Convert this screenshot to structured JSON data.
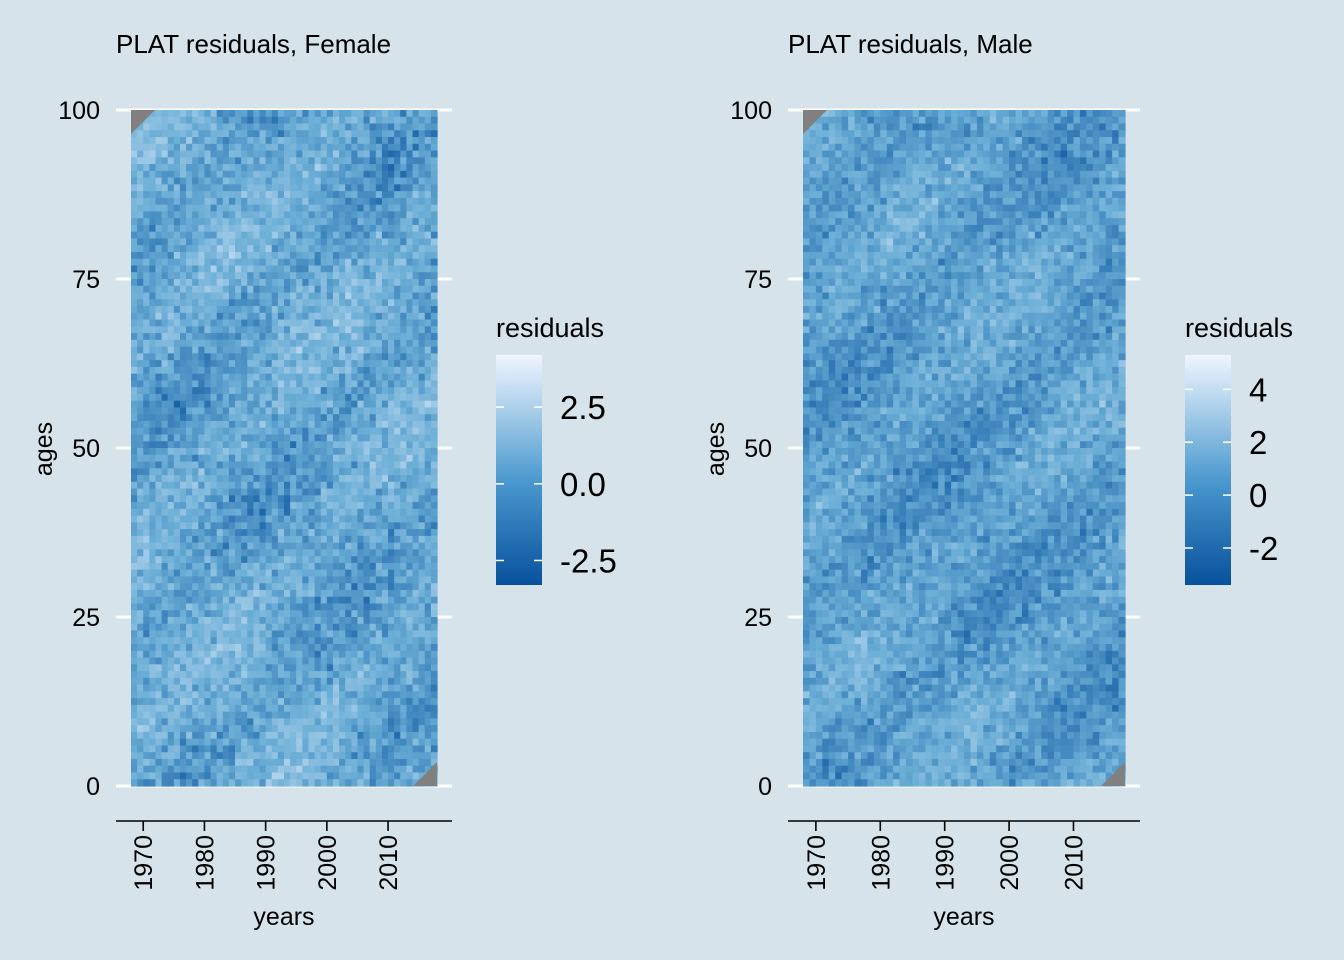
{
  "colors": {
    "background": "#d6e3ea",
    "scale_low": "#08519c",
    "scale_mid": "#6baed6",
    "scale_high": "#eef3ff",
    "missing": "#808080",
    "gridline": "#ffffff"
  },
  "chart_data": [
    {
      "type": "heatmap",
      "title": "PLAT residuals, Female",
      "xlabel": "years",
      "ylabel": "ages",
      "x_ticks": [
        "1970",
        "1980",
        "1990",
        "2000",
        "2010"
      ],
      "x_tick_values": [
        1970,
        1980,
        1990,
        2000,
        2010
      ],
      "y_ticks": [
        "0",
        "25",
        "50",
        "75",
        "100"
      ],
      "y_tick_values": [
        0,
        25,
        50,
        75,
        100
      ],
      "xlim": [
        1968,
        2018
      ],
      "ylim": [
        0,
        100
      ],
      "grid": "horizontal major lines",
      "legend": {
        "title": "residuals",
        "placement": "right",
        "breaks": [
          "2.5",
          "0.0",
          "-2.5"
        ],
        "break_values": [
          2.5,
          0.0,
          -2.5
        ],
        "range": [
          -3.3,
          4.2
        ]
      },
      "missing_corners": [
        "top-left",
        "bottom-right"
      ],
      "values_description": "residuals mostly within -2.5 to 2.5 across all years and ages"
    },
    {
      "type": "heatmap",
      "title": "PLAT residuals, Male",
      "xlabel": "years",
      "ylabel": "ages",
      "x_ticks": [
        "1970",
        "1980",
        "1990",
        "2000",
        "2010"
      ],
      "x_tick_values": [
        1970,
        1980,
        1990,
        2000,
        2010
      ],
      "y_ticks": [
        "0",
        "25",
        "50",
        "75",
        "100"
      ],
      "y_tick_values": [
        0,
        25,
        50,
        75,
        100
      ],
      "xlim": [
        1968,
        2018
      ],
      "ylim": [
        0,
        100
      ],
      "grid": "horizontal major lines",
      "legend": {
        "title": "residuals",
        "placement": "right",
        "breaks": [
          "4",
          "2",
          "0",
          "-2"
        ],
        "break_values": [
          4,
          2,
          0,
          -2
        ],
        "range": [
          -3.4,
          5.3
        ]
      },
      "missing_corners": [
        "top-left",
        "bottom-right"
      ],
      "values_description": "residuals mostly within -2 to 2 across all years and ages"
    }
  ]
}
